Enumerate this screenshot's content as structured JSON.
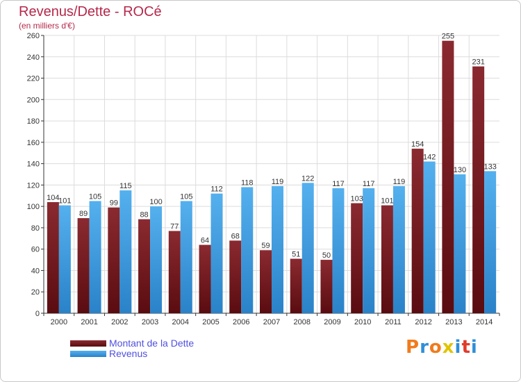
{
  "header": {
    "title": "Revenus/Dette - ROCé",
    "subtitle": "(en milliers d'€)"
  },
  "chart_data": {
    "type": "bar",
    "categories": [
      "2000",
      "2001",
      "2002",
      "2003",
      "2004",
      "2005",
      "2006",
      "2007",
      "2008",
      "2009",
      "2010",
      "2011",
      "2012",
      "2013",
      "2014"
    ],
    "series": [
      {
        "name": "Montant de la Dette",
        "color": "#7a1a1e",
        "values": [
          104,
          89,
          99,
          88,
          77,
          64,
          68,
          59,
          51,
          50,
          103,
          101,
          154,
          255,
          231
        ]
      },
      {
        "name": "Revenus",
        "color": "#3ea0e4",
        "values": [
          101,
          105,
          115,
          100,
          105,
          112,
          118,
          119,
          122,
          117,
          117,
          119,
          142,
          130,
          133
        ]
      }
    ],
    "ylim": [
      0,
      260
    ],
    "yticks": [
      0,
      20,
      40,
      60,
      80,
      100,
      120,
      140,
      160,
      180,
      200,
      220,
      240,
      260
    ],
    "grid": true,
    "legend_position": "bottom-left",
    "data_labels": true
  },
  "logo": {
    "letters": [
      "P",
      "r",
      "o",
      "x",
      "i",
      "t",
      "i"
    ],
    "colors": [
      "#f07b1e",
      "#2f8fd8",
      "#f07b1e",
      "#e0c400",
      "#2f8fd8",
      "#e23b2b",
      "#2f8fd8"
    ]
  }
}
